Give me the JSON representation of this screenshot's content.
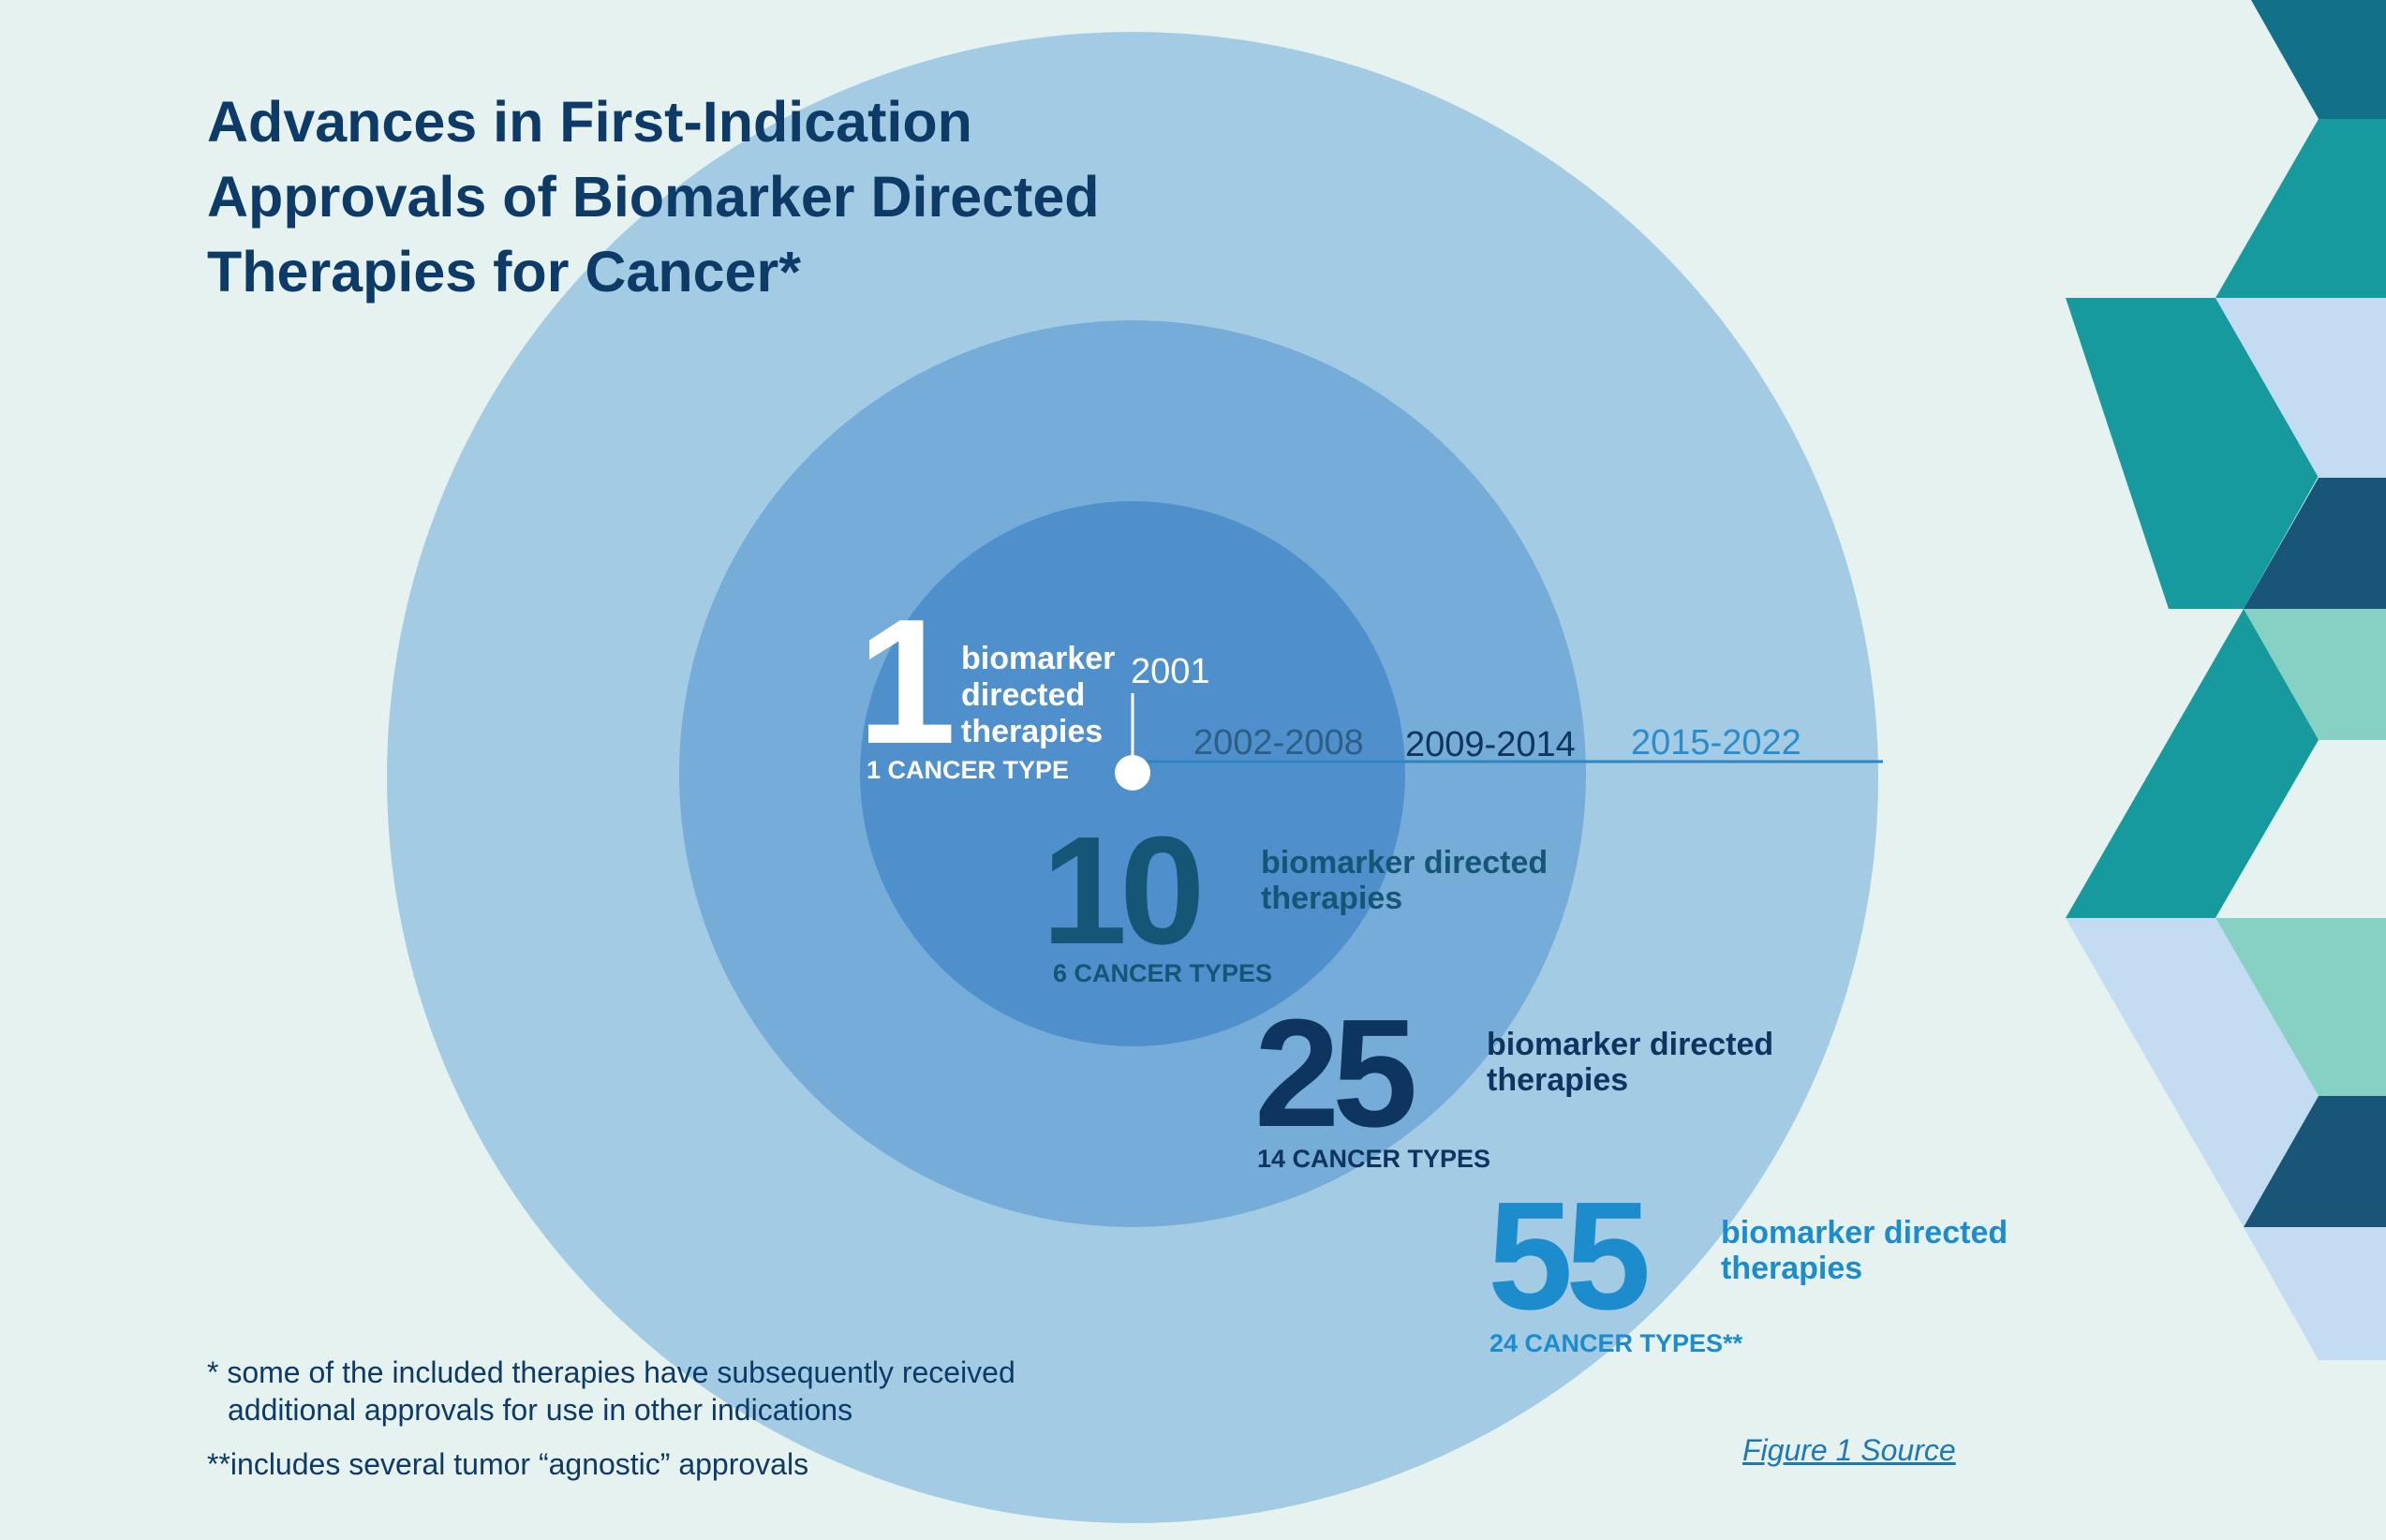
{
  "title_lines": [
    "Advances in First-Indication",
    "Approvals of Biomarker Directed",
    "Therapies for Cancer*"
  ],
  "timeline": {
    "start_label": "2001",
    "periods": [
      "2002-2008",
      "2009-2014",
      "2015-2022"
    ]
  },
  "stages": [
    {
      "number": "1",
      "label_lines": [
        "biomarker",
        "directed",
        "therapies"
      ],
      "cancer_types": "1 CANCER TYPE",
      "color": "#ffffff"
    },
    {
      "number": "10",
      "label_lines": [
        "biomarker directed",
        "therapies"
      ],
      "cancer_types": "6 CANCER TYPES",
      "color": "#155575"
    },
    {
      "number": "25",
      "label_lines": [
        "biomarker directed",
        "therapies"
      ],
      "cancer_types": "14 CANCER TYPES",
      "color": "#0d3560"
    },
    {
      "number": "55",
      "label_lines": [
        "biomarker directed",
        "therapies"
      ],
      "cancer_types": "24 CANCER TYPES**",
      "color": "#1c8ccc"
    }
  ],
  "rings": {
    "outer_color": "#a3cce4",
    "middle_color": "#76acd8",
    "inner_color": "#4f8fcb"
  },
  "footnotes": [
    "* some of the included therapies have subsequently received",
    "additional approvals for use in other indications",
    "**includes several tumor “agnostic” approvals"
  ],
  "source_link": "Figure 1 Source",
  "colors": {
    "background": "#e5f2ef",
    "title": "#0d3a66",
    "timeline_line": "#2a86c4"
  },
  "chevron_colors": [
    "#137089",
    "#169a9e",
    "#c3dcf2",
    "#185577",
    "#86d0c4"
  ]
}
